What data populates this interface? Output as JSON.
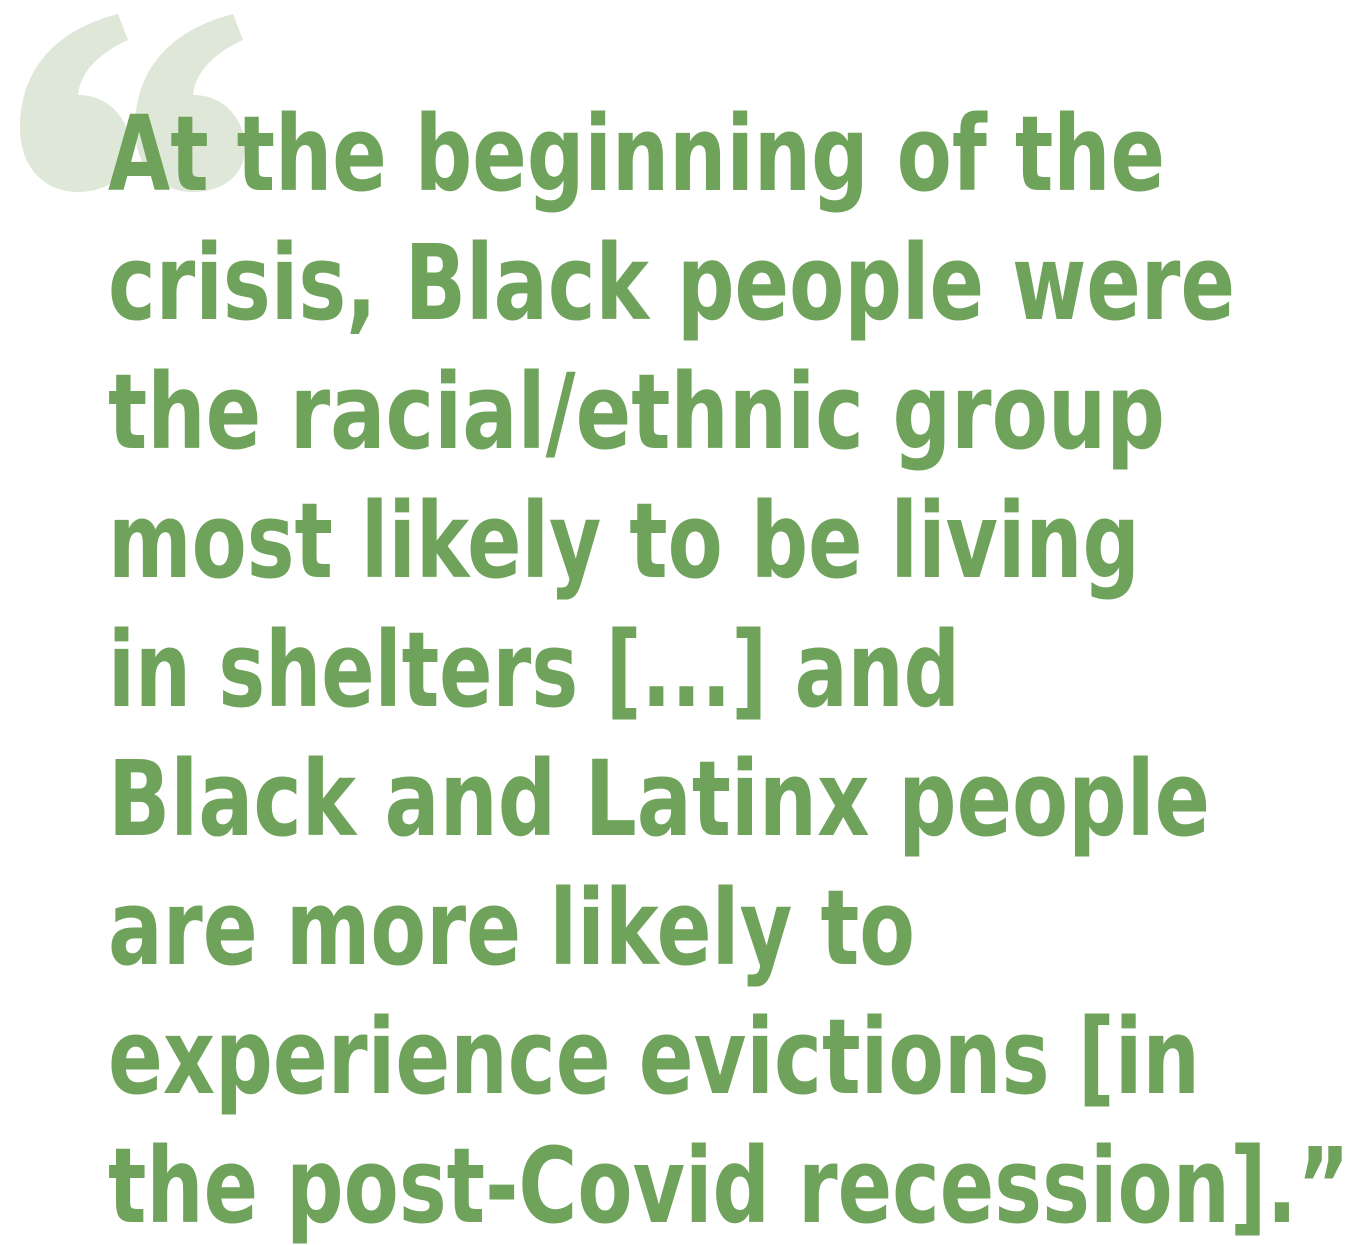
{
  "quote": {
    "lines": [
      "At the beginning of the",
      "crisis, Black people were",
      "the racial/ethnic group",
      "most likely to be living",
      "in shelters [...] and",
      "Black and Latinx people",
      "are more likely to",
      "experience evictions [in",
      "the post-Covid recession].”"
    ]
  }
}
